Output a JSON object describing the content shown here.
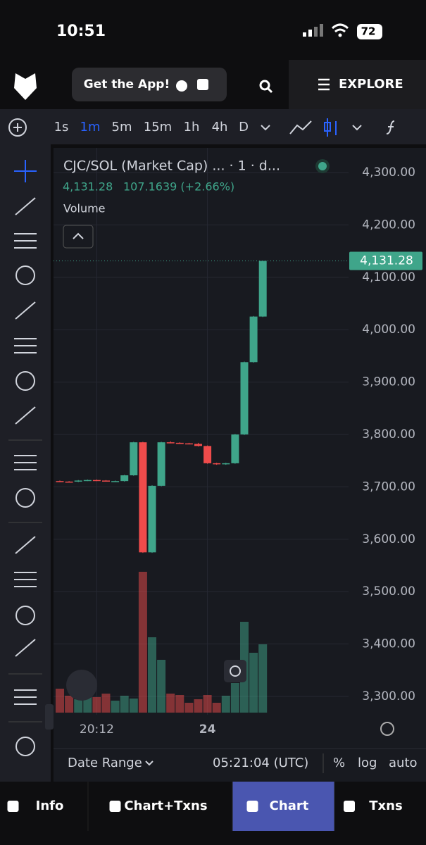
{
  "status_bar": {
    "time": "10:51",
    "battery": "72"
  },
  "header": {
    "app_button": "Get the App!",
    "explore": "EXPLORE"
  },
  "toolbar": {
    "intervals": [
      "1s",
      "1m",
      "5m",
      "15m",
      "1h",
      "4h",
      "D"
    ],
    "active": "1m",
    "active_color": "#2962ff"
  },
  "chart_data": {
    "type": "candlestick",
    "title": "CJC/SOL (Market Cap) ... · 1 · d...",
    "last_price": {
      "value": 4131.28,
      "label": "4,131.28"
    },
    "change": "107.1639 (+2.66%)",
    "volume_label": "Volume",
    "up_color": "#3fa58a",
    "down_color": "#ef4b4b",
    "categories": [
      null,
      null,
      null,
      null,
      "20:12",
      null,
      null,
      null,
      null,
      null,
      null,
      null,
      null,
      null,
      null,
      null,
      "24",
      null,
      null,
      null,
      null,
      null,
      null
    ],
    "open": [
      3711,
      3710,
      3710,
      3712,
      3713,
      3712,
      3711,
      3711,
      3722,
      3785,
      3575,
      3702,
      3785,
      3784,
      3783,
      3782,
      3778,
      3745,
      3743,
      3745,
      3800,
      3938,
      4025
    ],
    "high": [
      3712,
      3711,
      3713,
      3714,
      3714,
      3713,
      3712,
      3723,
      3786,
      3786,
      3703,
      3786,
      3787,
      3785,
      3784,
      3784,
      3779,
      3746,
      3746,
      3801,
      3939,
      4026,
      4131.28
    ],
    "low": [
      3709,
      3709,
      3709,
      3711,
      3711,
      3710,
      3710,
      3710,
      3721,
      3574,
      3574,
      3701,
      3783,
      3782,
      3781,
      3777,
      3744,
      3742,
      3742,
      3744,
      3799,
      3937,
      4024
    ],
    "close": [
      3710,
      3709,
      3712,
      3713,
      3712,
      3711,
      3711,
      3722,
      3785,
      3575,
      3702,
      3785,
      3784,
      3783,
      3782,
      3778,
      3745,
      3743,
      3745,
      3800,
      3938,
      4025,
      4131.28
    ],
    "volume": [
      34,
      24,
      19,
      27,
      22,
      27,
      17,
      24,
      20,
      200,
      107,
      75,
      27,
      25,
      14,
      19,
      25,
      14,
      24,
      42,
      129,
      85,
      97
    ],
    "volume_lim": [
      0,
      250
    ],
    "ylim": [
      3265,
      4347
    ],
    "yticks": [
      {
        "value": 4300,
        "label": "4,300.00"
      },
      {
        "value": 4200,
        "label": "4,200.00"
      },
      {
        "value": 4100,
        "label": "4,100.00"
      },
      {
        "value": 4000,
        "label": "4,000.00"
      },
      {
        "value": 3900,
        "label": "3,900.00"
      },
      {
        "value": 3800,
        "label": "3,800.00"
      },
      {
        "value": 3700,
        "label": "3,700.00"
      },
      {
        "value": 3600,
        "label": "3,600.00"
      },
      {
        "value": 3500,
        "label": "3,500.00"
      },
      {
        "value": 3400,
        "label": "3,400.00"
      },
      {
        "value": 3300,
        "label": "3,300.00"
      }
    ],
    "grid": true
  },
  "footer": {
    "date_range": "Date Range",
    "clock": "05:21:04 (UTC)",
    "percent": "%",
    "log": "log",
    "auto": "auto"
  },
  "tabs": {
    "items": [
      "Info",
      "Chart+Txns",
      "Chart",
      "Txns"
    ],
    "active": "Chart",
    "active_color": "#4a56b0"
  }
}
